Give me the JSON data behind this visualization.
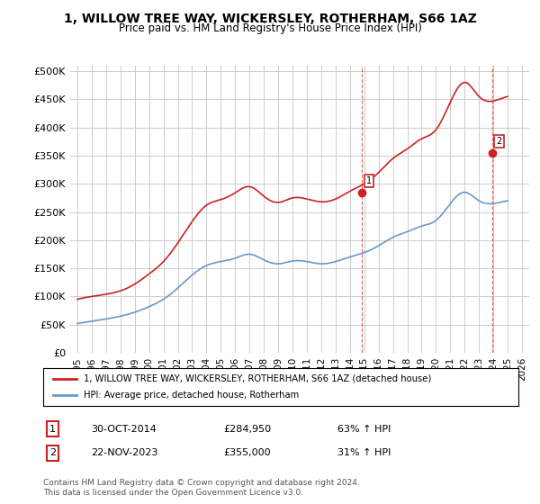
{
  "title": "1, WILLOW TREE WAY, WICKERSLEY, ROTHERHAM, S66 1AZ",
  "subtitle": "Price paid vs. HM Land Registry's House Price Index (HPI)",
  "ylabel_ticks": [
    "£0",
    "£50K",
    "£100K",
    "£150K",
    "£200K",
    "£250K",
    "£300K",
    "£350K",
    "£400K",
    "£450K",
    "£500K"
  ],
  "ytick_values": [
    0,
    50000,
    100000,
    150000,
    200000,
    250000,
    300000,
    350000,
    400000,
    450000,
    500000
  ],
  "ylim": [
    0,
    510000
  ],
  "xlim_start": 1995.0,
  "xlim_end": 2026.5,
  "hpi_color": "#6699cc",
  "price_color": "#cc2222",
  "marker1_x": 2014.83,
  "marker1_y": 284950,
  "marker2_x": 2023.9,
  "marker2_y": 355000,
  "marker1_label": "1",
  "marker2_label": "2",
  "annotation1_date": "30-OCT-2014",
  "annotation1_price": "£284,950",
  "annotation1_hpi": "63% ↑ HPI",
  "annotation2_date": "22-NOV-2023",
  "annotation2_price": "£355,000",
  "annotation2_hpi": "31% ↑ HPI",
  "legend_line1": "1, WILLOW TREE WAY, WICKERSLEY, ROTHERHAM, S66 1AZ (detached house)",
  "legend_line2": "HPI: Average price, detached house, Rotherham",
  "footer": "Contains HM Land Registry data © Crown copyright and database right 2024.\nThis data is licensed under the Open Government Licence v3.0.",
  "background_color": "#ffffff",
  "grid_color": "#cccccc"
}
